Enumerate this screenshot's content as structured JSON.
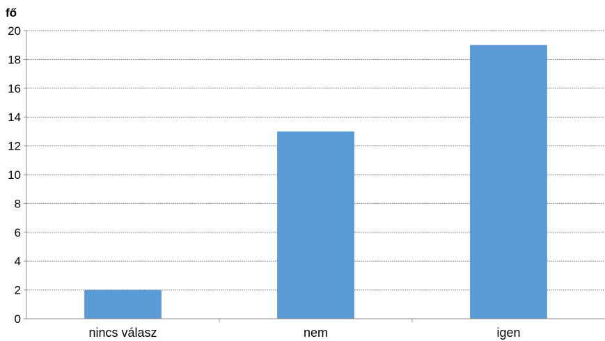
{
  "chart_data": {
    "type": "bar",
    "title": "",
    "xlabel": "",
    "ylabel": "fő",
    "categories": [
      "nincs válasz",
      "nem",
      "igen"
    ],
    "values": [
      2,
      13,
      19
    ],
    "ylim": [
      0,
      20
    ],
    "yticks": [
      0,
      2,
      4,
      6,
      8,
      10,
      12,
      14,
      16,
      18,
      20
    ],
    "grid": true,
    "legend": "none",
    "bar_color": "#5b9bd5"
  }
}
